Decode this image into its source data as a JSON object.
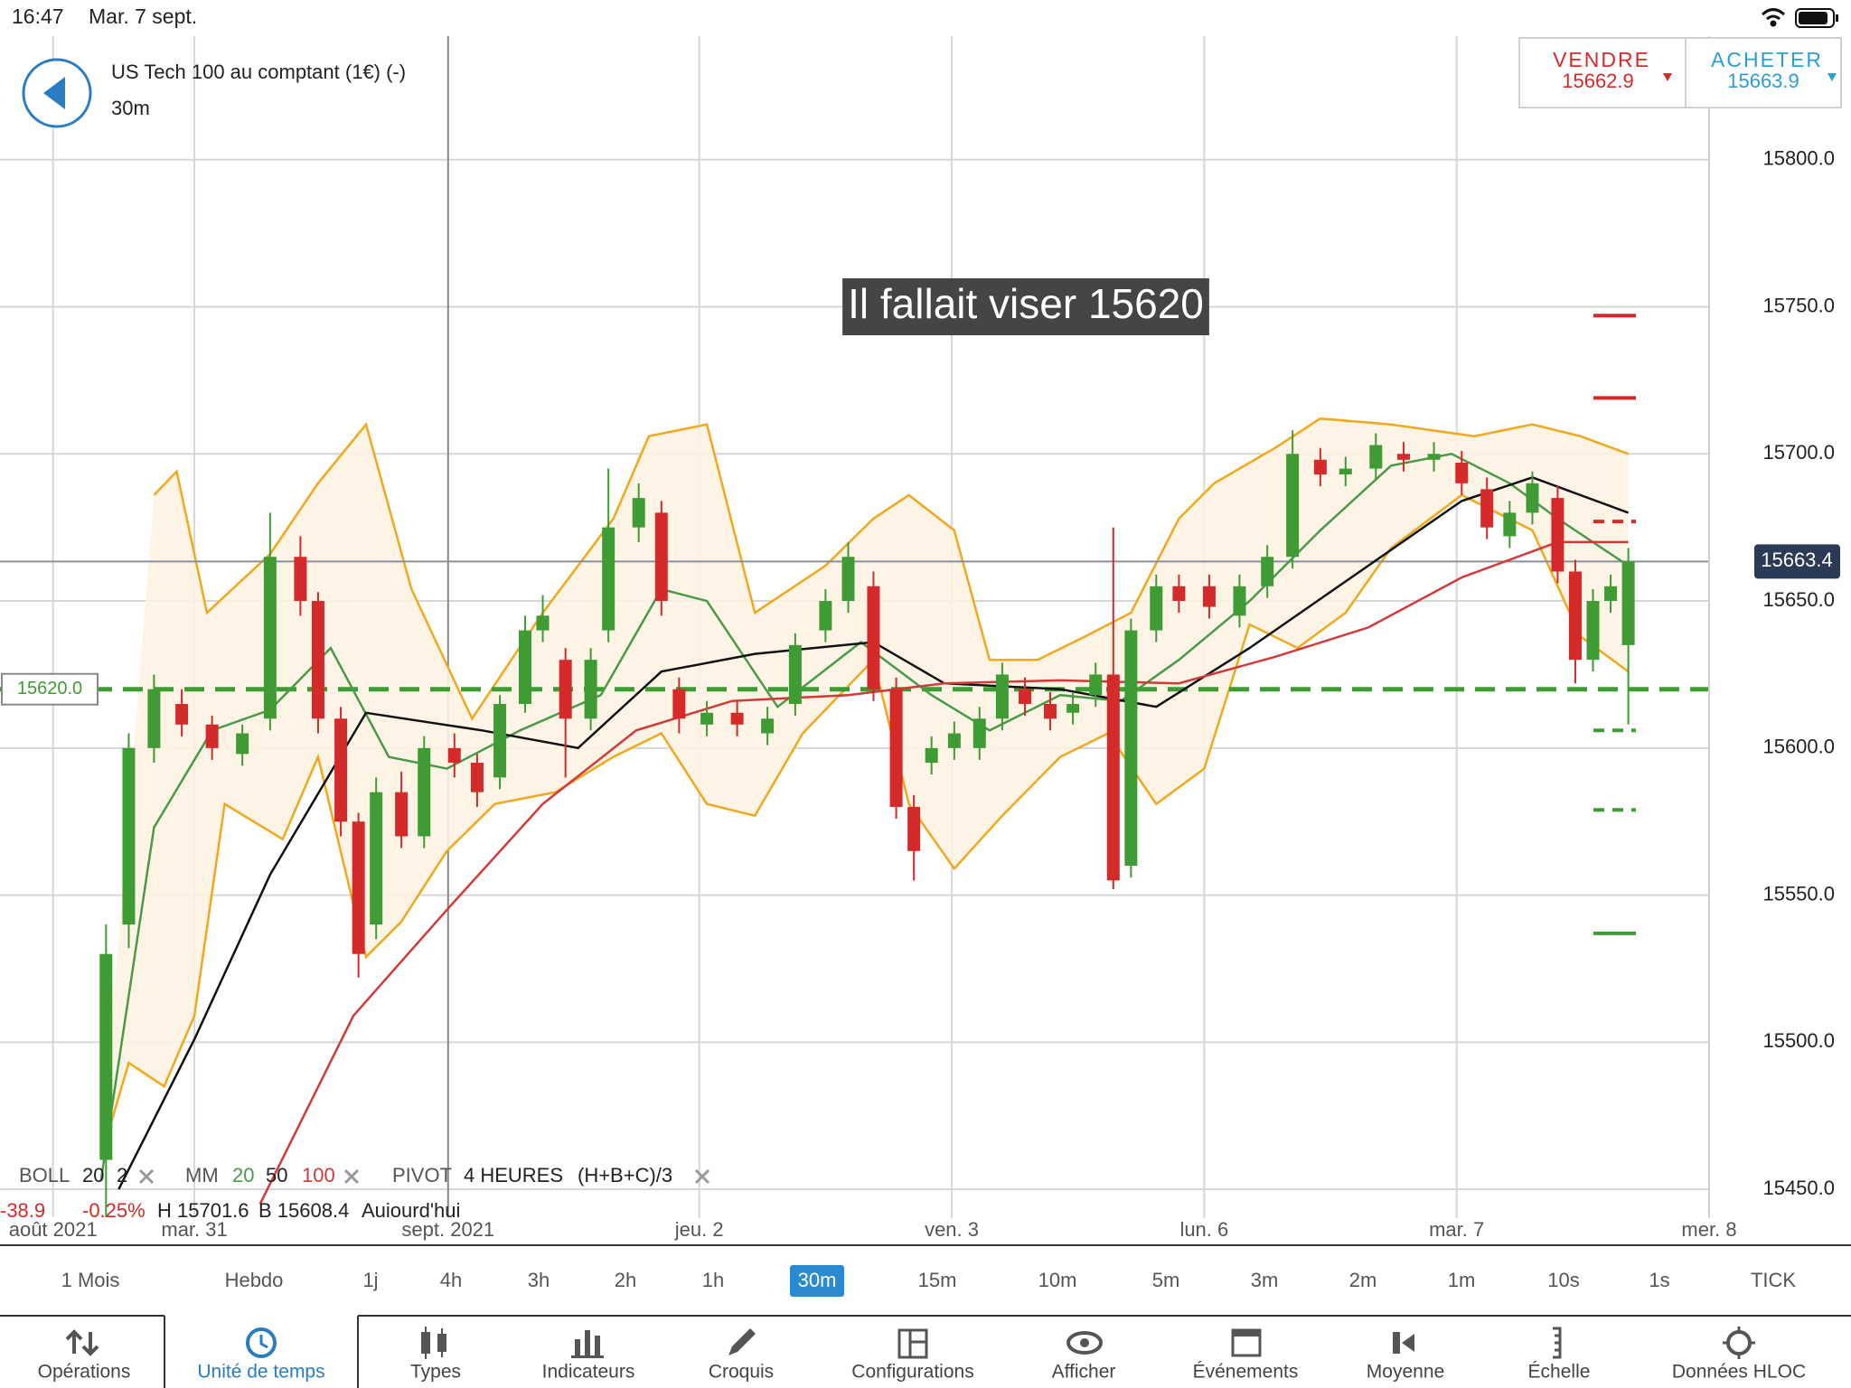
{
  "status_bar": {
    "time": "16:47",
    "date": "Mar. 7 sept."
  },
  "header": {
    "title": "US Tech 100 au comptant (1€) (-)",
    "timeframe": "30m"
  },
  "quote": {
    "sell_label": "VENDRE",
    "sell_price": 15662.9,
    "buy_label": "ACHETER",
    "buy_price": 15663.9
  },
  "chart_data": {
    "type": "candlestick",
    "annotation": "Il fallait viser 15620",
    "xlim": [
      -0.77,
      6
    ],
    "ylim": [
      15431,
      15842
    ],
    "grid": true,
    "xticks": [
      {
        "value": -0.56,
        "label": "août 2021"
      },
      {
        "value": 0,
        "label": "mar. 31"
      },
      {
        "value": 1.005,
        "label": "sept. 2021"
      },
      {
        "value": 2,
        "label": "jeu. 2"
      },
      {
        "value": 3,
        "label": "ven. 3"
      },
      {
        "value": 4,
        "label": "lun. 6"
      },
      {
        "value": 5,
        "label": "mar. 7"
      },
      {
        "value": 6,
        "label": "mer. 8"
      }
    ],
    "yticks": [
      {
        "value": 15450,
        "label": "15450.0"
      },
      {
        "value": 15500,
        "label": "15500.0"
      },
      {
        "value": 15550,
        "label": "15550.0"
      },
      {
        "value": 15600,
        "label": "15600.0"
      },
      {
        "value": 15650,
        "label": "15650.0"
      },
      {
        "value": 15700,
        "label": "15700.0"
      },
      {
        "value": 15750,
        "label": "15750.0"
      },
      {
        "value": 15800,
        "label": "15800.0"
      }
    ],
    "up_color": "#3f9c35",
    "down_color": "#d42a2a",
    "x": [
      -0.35,
      -0.26,
      -0.16,
      -0.05,
      0.07,
      0.19,
      0.3,
      0.42,
      0.49,
      0.58,
      0.65,
      0.72,
      0.82,
      0.91,
      1.03,
      1.12,
      1.21,
      1.31,
      1.38,
      1.47,
      1.57,
      1.64,
      1.76,
      1.85,
      1.92,
      2.03,
      2.15,
      2.27,
      2.38,
      2.5,
      2.59,
      2.69,
      2.78,
      2.85,
      2.92,
      3.01,
      3.11,
      3.2,
      3.29,
      3.39,
      3.48,
      3.57,
      3.64,
      3.71,
      3.81,
      3.9,
      4.02,
      4.14,
      4.25,
      4.35,
      4.46,
      4.56,
      4.68,
      4.79,
      4.91,
      5.02,
      5.12,
      5.21,
      5.3,
      5.4,
      5.47,
      5.54,
      5.61,
      5.68
    ],
    "open": [
      15460,
      15540,
      15600,
      15615,
      15608,
      15598,
      15610,
      15665,
      15650,
      15610,
      15575,
      15540,
      15585,
      15570,
      15600,
      15595,
      15590,
      15615,
      15640,
      15630,
      15610,
      15640,
      15675,
      15680,
      15620,
      15608,
      15612,
      15605,
      15615,
      15640,
      15650,
      15655,
      15620,
      15580,
      15595,
      15600,
      15600,
      15610,
      15620,
      15615,
      15612,
      15618,
      15625,
      15560,
      15640,
      15655,
      15655,
      15645,
      15655,
      15665,
      15698,
      15693,
      15695,
      15700,
      15698,
      15697,
      15688,
      15672,
      15680,
      15685,
      15660,
      15630,
      15650,
      15635
    ],
    "high": [
      15540,
      15605,
      15625,
      15620,
      15611,
      15608,
      15680,
      15672,
      15653,
      15614,
      15578,
      15590,
      15592,
      15604,
      15605,
      15598,
      15618,
      15645,
      15652,
      15634,
      15634,
      15695,
      15690,
      15684,
      15624,
      15616,
      15616,
      15614,
      15639,
      15654,
      15670,
      15660,
      15624,
      15584,
      15604,
      15609,
      15614,
      15629,
      15624,
      15619,
      15619,
      15629,
      15675,
      15644,
      15659,
      15659,
      15659,
      15659,
      15669,
      15708,
      15702,
      15699,
      15707,
      15704,
      15704,
      15701,
      15692,
      15684,
      15694,
      15689,
      15664,
      15654,
      15659,
      15668
    ],
    "low": [
      15440,
      15532,
      15595,
      15604,
      15596,
      15594,
      15606,
      15645,
      15605,
      15570,
      15522,
      15535,
      15566,
      15566,
      15590,
      15580,
      15586,
      15612,
      15636,
      15590,
      15606,
      15636,
      15670,
      15645,
      15605,
      15604,
      15604,
      15601,
      15611,
      15636,
      15646,
      15616,
      15576,
      15555,
      15591,
      15596,
      15596,
      15606,
      15611,
      15606,
      15608,
      15614,
      15552,
      15556,
      15636,
      15646,
      15644,
      15641,
      15651,
      15661,
      15689,
      15689,
      15691,
      15694,
      15694,
      15686,
      15671,
      15668,
      15676,
      15656,
      15622,
      15626,
      15646,
      15608
    ],
    "close": [
      15530,
      15600,
      15620,
      15608,
      15600,
      15605,
      15665,
      15650,
      15610,
      15575,
      15530,
      15585,
      15570,
      15600,
      15595,
      15585,
      15615,
      15640,
      15645,
      15610,
      15630,
      15675,
      15685,
      15650,
      15610,
      15612,
      15608,
      15610,
      15635,
      15650,
      15665,
      15620,
      15580,
      15565,
      15600,
      15605,
      15610,
      15625,
      15615,
      15610,
      15615,
      15625,
      15555,
      15640,
      15655,
      15650,
      15648,
      15655,
      15665,
      15700,
      15693,
      15695,
      15703,
      15698,
      15700,
      15690,
      15675,
      15680,
      15690,
      15660,
      15630,
      15650,
      15655,
      15663.4
    ],
    "bollinger": {
      "color": "#f0a81c",
      "fill": "#fdf3e3",
      "upper": {
        "x": [
          -0.16,
          -0.07,
          0.05,
          0.3,
          0.49,
          0.68,
          0.86,
          1.1,
          1.38,
          1.66,
          1.8,
          2.03,
          2.22,
          2.5,
          2.69,
          2.83,
          3.01,
          3.15,
          3.34,
          3.53,
          3.71,
          3.9,
          4.04,
          4.28,
          4.46,
          4.74,
          5.07,
          5.3,
          5.49,
          5.68
        ],
        "values": [
          15686,
          15694,
          15646,
          15666,
          15690,
          15710,
          15654,
          15610,
          15646,
          15678,
          15706,
          15710,
          15646,
          15662,
          15678,
          15686,
          15674,
          15630,
          15630,
          15638,
          15646,
          15678,
          15690,
          15702,
          15712,
          15710,
          15706,
          15710,
          15706,
          15700
        ]
      },
      "lower": {
        "x": [
          -0.37,
          -0.26,
          -0.12,
          0,
          0.12,
          0.35,
          0.49,
          0.68,
          0.82,
          1.0,
          1.19,
          1.43,
          1.66,
          1.85,
          2.03,
          2.22,
          2.41,
          2.69,
          2.83,
          3.01,
          3.2,
          3.43,
          3.62,
          3.81,
          4.0,
          4.18,
          4.37,
          4.56,
          4.74,
          5.02,
          5.3,
          5.49,
          5.68
        ],
        "values": [
          15461,
          15493,
          15485,
          15509,
          15581,
          15569,
          15597,
          15529,
          15541,
          15565,
          15581,
          15585,
          15597,
          15605,
          15581,
          15577,
          15605,
          15630,
          15581,
          15559,
          15577,
          15597,
          15605,
          15581,
          15593,
          15642,
          15634,
          15646,
          15668,
          15686,
          15674,
          15638,
          15626
        ]
      }
    },
    "overlays": [
      {
        "color": "#4a9a4a",
        "x": [
          -0.37,
          -0.16,
          0.07,
          0.3,
          0.54,
          0.77,
          1.0,
          1.29,
          1.61,
          1.85,
          2.03,
          2.31,
          2.64,
          2.92,
          3.15,
          3.43,
          3.67,
          3.9,
          4.18,
          4.46,
          4.74,
          4.98,
          5.21,
          5.4,
          5.68
        ],
        "values": [
          15453,
          15573,
          15606,
          15613,
          15634,
          15597,
          15593,
          15606,
          15618,
          15654,
          15650,
          15614,
          15636,
          15618,
          15606,
          15618,
          15616,
          15630,
          15650,
          15674,
          15696,
          15700,
          15690,
          15678,
          15662
        ]
      },
      {
        "color": "#111111",
        "x": [
          -0.3,
          0,
          0.3,
          0.68,
          1.14,
          1.52,
          1.85,
          2.22,
          2.69,
          2.97,
          3.43,
          3.81,
          4.18,
          4.65,
          5.02,
          5.3,
          5.68
        ],
        "values": [
          15450,
          15501,
          15557,
          15612,
          15606,
          15600,
          15626,
          15632,
          15636,
          15622,
          15620,
          15614,
          15634,
          15662,
          15684,
          15692,
          15680
        ]
      },
      {
        "color": "#d23a3a",
        "x": [
          0.26,
          0.63,
          1.0,
          1.38,
          1.75,
          2.13,
          2.59,
          2.97,
          3.43,
          3.9,
          4.28,
          4.65,
          5.02,
          5.4,
          5.68
        ],
        "values": [
          15445,
          15509,
          15545,
          15581,
          15606,
          15616,
          15618,
          15622,
          15623,
          15622,
          15631,
          15641,
          15658,
          15670,
          15670
        ]
      }
    ],
    "last_price": 15663.4,
    "level": {
      "value": 15620,
      "label": "15620.0",
      "color": "#3f9c35"
    },
    "pivots": [
      {
        "value": 15747,
        "color": "#d42a2a",
        "dashed": false
      },
      {
        "value": 15719,
        "color": "#d42a2a",
        "dashed": false
      },
      {
        "value": 15677,
        "color": "#d42a2a",
        "dashed": true
      },
      {
        "value": 15606,
        "color": "#3f9c35",
        "dashed": true
      },
      {
        "value": 15579,
        "color": "#3f9c35",
        "dashed": true
      },
      {
        "value": 15537,
        "color": "#3f9c35",
        "dashed": false
      }
    ]
  },
  "indicators": {
    "boll": {
      "name": "BOLL",
      "period": "20",
      "deviation": "2"
    },
    "mm": {
      "name": "MM",
      "periods": [
        "20",
        "50",
        "100"
      ]
    },
    "pivot": {
      "name": "PIVOT",
      "period": "4 HEURES",
      "formula": "(H+B+C)/3"
    },
    "stats": [
      "-38.9",
      "-0.25%",
      "H 15701.6",
      "B 15608.4",
      "Aujourd'hui"
    ]
  },
  "timeframes": {
    "items": [
      "1 Mois",
      "Hebdo",
      "1j",
      "4h",
      "3h",
      "2h",
      "1h",
      "30m",
      "15m",
      "10m",
      "5m",
      "3m",
      "2m",
      "1m",
      "10s",
      "1s",
      "TICK"
    ],
    "selected": 7
  },
  "toolbar": {
    "items": [
      "Opérations",
      "Unité de temps",
      "Types",
      "Indicateurs",
      "Croquis",
      "Configurations",
      "Afficher",
      "Événements",
      "Moyenne",
      "Échelle",
      "Données HLOC"
    ],
    "active": 1
  }
}
